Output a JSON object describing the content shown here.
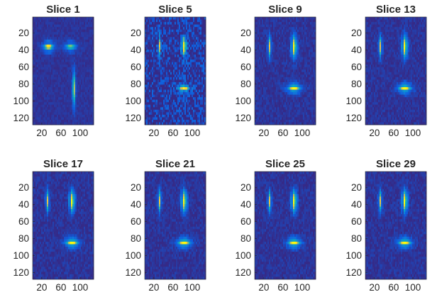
{
  "chart_data": [
    {
      "type": "heatmap",
      "title": "Slice 1",
      "xticks": [
        "20",
        "60",
        "100"
      ],
      "yticks": [
        "20",
        "40",
        "60",
        "80",
        "100",
        "120"
      ],
      "xlim": [
        1,
        128
      ],
      "ylim": [
        1,
        128
      ],
      "colormap": "parula",
      "blobs": [
        {
          "x": 34,
          "y": 36,
          "w": 5,
          "h": 3.5,
          "amp": 0.95,
          "mode": "h"
        },
        {
          "x": 80,
          "y": 36,
          "w": 6,
          "h": 3.5,
          "amp": 0.55,
          "mode": "h"
        },
        {
          "x": 87,
          "y": 86,
          "w": 2.2,
          "h": 11,
          "amp": 0.75,
          "mode": "v"
        }
      ],
      "noise": 0.02
    },
    {
      "type": "heatmap",
      "title": "Slice 5",
      "xticks": [
        "20",
        "60",
        "100"
      ],
      "yticks": [
        "20",
        "40",
        "60",
        "80",
        "100",
        "120"
      ],
      "xlim": [
        1,
        128
      ],
      "ylim": [
        1,
        128
      ],
      "colormap": "parula",
      "blobs": [
        {
          "x": 32,
          "y": 36,
          "w": 2.5,
          "h": 7,
          "amp": 0.6,
          "mode": "v"
        },
        {
          "x": 83,
          "y": 36,
          "w": 3.5,
          "h": 7,
          "amp": 0.95,
          "mode": "v"
        },
        {
          "x": 83,
          "y": 85,
          "w": 6.5,
          "h": 3.5,
          "amp": 0.85,
          "mode": "h"
        }
      ],
      "noise": 0.12
    },
    {
      "type": "heatmap",
      "title": "Slice 9",
      "xticks": [
        "20",
        "60",
        "100"
      ],
      "yticks": [
        "20",
        "40",
        "60",
        "80",
        "100",
        "120"
      ],
      "xlim": [
        1,
        128
      ],
      "ylim": [
        1,
        128
      ],
      "colormap": "parula",
      "blobs": [
        {
          "x": 32,
          "y": 36,
          "w": 2.5,
          "h": 7,
          "amp": 0.65,
          "mode": "v"
        },
        {
          "x": 83,
          "y": 36,
          "w": 3.5,
          "h": 7,
          "amp": 1.0,
          "mode": "v"
        },
        {
          "x": 83,
          "y": 85,
          "w": 6.5,
          "h": 3.5,
          "amp": 0.95,
          "mode": "h"
        }
      ],
      "noise": 0.03
    },
    {
      "type": "heatmap",
      "title": "Slice 13",
      "xticks": [
        "20",
        "60",
        "100"
      ],
      "yticks": [
        "20",
        "40",
        "60",
        "80",
        "100",
        "120"
      ],
      "xlim": [
        1,
        128
      ],
      "ylim": [
        1,
        128
      ],
      "colormap": "parula",
      "blobs": [
        {
          "x": 32,
          "y": 36,
          "w": 2.5,
          "h": 7,
          "amp": 0.65,
          "mode": "v"
        },
        {
          "x": 83,
          "y": 36,
          "w": 3.5,
          "h": 7,
          "amp": 1.0,
          "mode": "v"
        },
        {
          "x": 83,
          "y": 85,
          "w": 6.5,
          "h": 3.5,
          "amp": 0.95,
          "mode": "h"
        }
      ],
      "noise": 0.03
    },
    {
      "type": "heatmap",
      "title": "Slice 17",
      "xticks": [
        "20",
        "60",
        "100"
      ],
      "yticks": [
        "20",
        "40",
        "60",
        "80",
        "100",
        "120"
      ],
      "xlim": [
        1,
        128
      ],
      "ylim": [
        1,
        128
      ],
      "colormap": "parula",
      "blobs": [
        {
          "x": 32,
          "y": 36,
          "w": 2.5,
          "h": 7,
          "amp": 0.65,
          "mode": "v"
        },
        {
          "x": 83,
          "y": 36,
          "w": 3.5,
          "h": 7,
          "amp": 1.0,
          "mode": "v"
        },
        {
          "x": 83,
          "y": 85,
          "w": 6.5,
          "h": 3.5,
          "amp": 0.95,
          "mode": "h"
        }
      ],
      "noise": 0.03
    },
    {
      "type": "heatmap",
      "title": "Slice 21",
      "xticks": [
        "20",
        "60",
        "100"
      ],
      "yticks": [
        "20",
        "40",
        "60",
        "80",
        "100",
        "120"
      ],
      "xlim": [
        1,
        128
      ],
      "ylim": [
        1,
        128
      ],
      "colormap": "parula",
      "blobs": [
        {
          "x": 32,
          "y": 36,
          "w": 2.5,
          "h": 7,
          "amp": 0.65,
          "mode": "v"
        },
        {
          "x": 83,
          "y": 36,
          "w": 3.5,
          "h": 7,
          "amp": 1.0,
          "mode": "v"
        },
        {
          "x": 83,
          "y": 85,
          "w": 6.5,
          "h": 3.5,
          "amp": 0.95,
          "mode": "h"
        }
      ],
      "noise": 0.03
    },
    {
      "type": "heatmap",
      "title": "Slice 25",
      "xticks": [
        "20",
        "60",
        "100"
      ],
      "yticks": [
        "20",
        "40",
        "60",
        "80",
        "100",
        "120"
      ],
      "xlim": [
        1,
        128
      ],
      "ylim": [
        1,
        128
      ],
      "colormap": "parula",
      "blobs": [
        {
          "x": 32,
          "y": 36,
          "w": 2.5,
          "h": 7,
          "amp": 0.65,
          "mode": "v"
        },
        {
          "x": 83,
          "y": 36,
          "w": 3.5,
          "h": 7,
          "amp": 1.0,
          "mode": "v"
        },
        {
          "x": 83,
          "y": 85,
          "w": 6.5,
          "h": 3.5,
          "amp": 0.95,
          "mode": "h"
        }
      ],
      "noise": 0.03
    },
    {
      "type": "heatmap",
      "title": "Slice 29",
      "xticks": [
        "20",
        "60",
        "100"
      ],
      "yticks": [
        "20",
        "40",
        "60",
        "80",
        "100",
        "120"
      ],
      "xlim": [
        1,
        128
      ],
      "ylim": [
        1,
        128
      ],
      "colormap": "parula",
      "blobs": [
        {
          "x": 32,
          "y": 36,
          "w": 2.5,
          "h": 7,
          "amp": 0.65,
          "mode": "v"
        },
        {
          "x": 83,
          "y": 36,
          "w": 3.5,
          "h": 7,
          "amp": 1.0,
          "mode": "v"
        },
        {
          "x": 83,
          "y": 85,
          "w": 6.5,
          "h": 3.5,
          "amp": 0.95,
          "mode": "h"
        }
      ],
      "noise": 0.03
    }
  ]
}
